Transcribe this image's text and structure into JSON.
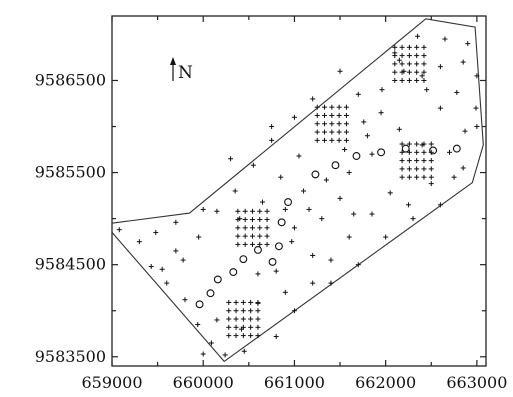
{
  "chart_data": {
    "type": "scatter",
    "title": "",
    "xlabel": "",
    "ylabel": "",
    "xlim": [
      659000,
      663100
    ],
    "ylim": [
      9583400,
      9587200
    ],
    "x_ticks": [
      659000,
      660000,
      661000,
      662000,
      663000
    ],
    "y_ticks": [
      9583500,
      9584500,
      9585500,
      9586500
    ],
    "x_tick_labels": [
      "659000",
      "660000",
      "661000",
      "662000",
      "663000"
    ],
    "y_tick_labels": [
      "9583500",
      "9584500",
      "9585500",
      "9586500"
    ],
    "north_arrow": {
      "label": "N"
    },
    "grid": false,
    "legend": "none",
    "boundary": [
      [
        659000,
        9584950
      ],
      [
        659850,
        9585060
      ],
      [
        662440,
        9587170
      ],
      [
        662980,
        9587080
      ],
      [
        663070,
        9585800
      ],
      [
        662950,
        9585390
      ],
      [
        660230,
        9583450
      ],
      [
        659000,
        9584850
      ],
      [
        659000,
        9584950
      ]
    ],
    "series": [
      {
        "marker": "plus",
        "points": [
          [
            659080,
            9584880
          ],
          [
            659300,
            9584750
          ],
          [
            659480,
            9584850
          ],
          [
            659700,
            9584960
          ],
          [
            660000,
            9585100
          ],
          [
            659430,
            9584480
          ],
          [
            659600,
            9584300
          ],
          [
            659800,
            9584120
          ],
          [
            659940,
            9583850
          ],
          [
            660090,
            9583650
          ],
          [
            660240,
            9583520
          ],
          [
            660420,
            9583800
          ],
          [
            660600,
            9584080
          ],
          [
            660800,
            9584430
          ],
          [
            660970,
            9584750
          ],
          [
            661160,
            9585100
          ],
          [
            661350,
            9585420
          ],
          [
            661550,
            9585750
          ],
          [
            661760,
            9586050
          ],
          [
            661960,
            9586400
          ],
          [
            662150,
            9586720
          ],
          [
            662350,
            9586980
          ],
          [
            662650,
            9586950
          ],
          [
            662900,
            9586900
          ],
          [
            663000,
            9586550
          ],
          [
            662780,
            9586370
          ],
          [
            662600,
            9586200
          ],
          [
            662990,
            9586200
          ],
          [
            662870,
            9585950
          ],
          [
            662700,
            9585720
          ],
          [
            662400,
            9585800
          ],
          [
            662150,
            9585970
          ],
          [
            661950,
            9586150
          ],
          [
            661700,
            9586350
          ],
          [
            661500,
            9586600
          ],
          [
            661200,
            9586300
          ],
          [
            661000,
            9586100
          ],
          [
            660750,
            9585850
          ],
          [
            660550,
            9585580
          ],
          [
            660350,
            9585300
          ],
          [
            660150,
            9585080
          ],
          [
            659950,
            9584800
          ],
          [
            659780,
            9584550
          ],
          [
            660000,
            9583530
          ],
          [
            660150,
            9583900
          ],
          [
            660800,
            9583720
          ],
          [
            661000,
            9584000
          ],
          [
            661200,
            9584300
          ],
          [
            661400,
            9584550
          ],
          [
            661600,
            9584800
          ],
          [
            661850,
            9585050
          ],
          [
            662050,
            9585280
          ],
          [
            662250,
            9585150
          ],
          [
            662500,
            9585380
          ],
          [
            662750,
            9585450
          ],
          [
            661100,
            9585300
          ],
          [
            661300,
            9585000
          ],
          [
            661500,
            9585220
          ],
          [
            661050,
            9585680
          ],
          [
            660850,
            9585450
          ],
          [
            660650,
            9585180
          ],
          [
            660300,
            9585650
          ],
          [
            660750,
            9586000
          ],
          [
            662400,
            9586550
          ],
          [
            662450,
            9586400
          ],
          [
            662200,
            9586600
          ],
          [
            661800,
            9585900
          ],
          [
            661600,
            9585500
          ],
          [
            661850,
            9585700
          ],
          [
            662100,
            9586800
          ],
          [
            662600,
            9586650
          ],
          [
            662850,
            9586700
          ],
          [
            663000,
            9586000
          ],
          [
            660600,
            9584400
          ],
          [
            660900,
            9584200
          ],
          [
            661200,
            9584600
          ],
          [
            661400,
            9584300
          ],
          [
            661700,
            9584500
          ],
          [
            662000,
            9584800
          ],
          [
            662300,
            9585000
          ],
          [
            662600,
            9585150
          ],
          [
            662850,
            9585550
          ],
          [
            660400,
            9585000
          ],
          [
            660900,
            9585100
          ],
          [
            661650,
            9585050
          ],
          [
            661000,
            9584900
          ],
          [
            660450,
            9583560
          ],
          [
            659700,
            9584650
          ],
          [
            659550,
            9584450
          ],
          [
            660280,
            9583730
          ],
          [
            660360,
            9583730
          ],
          [
            660440,
            9583730
          ],
          [
            660520,
            9583730
          ],
          [
            660600,
            9583730
          ],
          [
            660280,
            9583820
          ],
          [
            660360,
            9583820
          ],
          [
            660440,
            9583820
          ],
          [
            660520,
            9583820
          ],
          [
            660600,
            9583820
          ],
          [
            660280,
            9583910
          ],
          [
            660360,
            9583910
          ],
          [
            660440,
            9583910
          ],
          [
            660520,
            9583910
          ],
          [
            660600,
            9583910
          ],
          [
            660280,
            9584000
          ],
          [
            660360,
            9584000
          ],
          [
            660440,
            9584000
          ],
          [
            660520,
            9584000
          ],
          [
            660600,
            9584000
          ],
          [
            660280,
            9584090
          ],
          [
            660360,
            9584090
          ],
          [
            660440,
            9584090
          ],
          [
            660520,
            9584090
          ],
          [
            660600,
            9584090
          ],
          [
            660380,
            9584720
          ],
          [
            660460,
            9584720
          ],
          [
            660540,
            9584720
          ],
          [
            660620,
            9584720
          ],
          [
            660700,
            9584720
          ],
          [
            660380,
            9584810
          ],
          [
            660460,
            9584810
          ],
          [
            660540,
            9584810
          ],
          [
            660620,
            9584810
          ],
          [
            660700,
            9584810
          ],
          [
            660380,
            9584900
          ],
          [
            660460,
            9584900
          ],
          [
            660540,
            9584900
          ],
          [
            660620,
            9584900
          ],
          [
            660700,
            9584900
          ],
          [
            660380,
            9584990
          ],
          [
            660460,
            9584990
          ],
          [
            660540,
            9584990
          ],
          [
            660620,
            9584990
          ],
          [
            660700,
            9584990
          ],
          [
            660380,
            9585080
          ],
          [
            660460,
            9585080
          ],
          [
            660540,
            9585080
          ],
          [
            660620,
            9585080
          ],
          [
            660700,
            9585080
          ],
          [
            661250,
            9585850
          ],
          [
            661330,
            9585850
          ],
          [
            661410,
            9585850
          ],
          [
            661490,
            9585850
          ],
          [
            661570,
            9585850
          ],
          [
            661250,
            9585940
          ],
          [
            661330,
            9585940
          ],
          [
            661410,
            9585940
          ],
          [
            661490,
            9585940
          ],
          [
            661570,
            9585940
          ],
          [
            661250,
            9586030
          ],
          [
            661330,
            9586030
          ],
          [
            661410,
            9586030
          ],
          [
            661490,
            9586030
          ],
          [
            661570,
            9586030
          ],
          [
            661250,
            9586120
          ],
          [
            661330,
            9586120
          ],
          [
            661410,
            9586120
          ],
          [
            661490,
            9586120
          ],
          [
            661570,
            9586120
          ],
          [
            661250,
            9586210
          ],
          [
            661330,
            9586210
          ],
          [
            661410,
            9586210
          ],
          [
            661490,
            9586210
          ],
          [
            661570,
            9586210
          ],
          [
            662100,
            9586500
          ],
          [
            662180,
            9586500
          ],
          [
            662260,
            9586500
          ],
          [
            662340,
            9586500
          ],
          [
            662420,
            9586500
          ],
          [
            662100,
            9586590
          ],
          [
            662180,
            9586590
          ],
          [
            662260,
            9586590
          ],
          [
            662340,
            9586590
          ],
          [
            662420,
            9586590
          ],
          [
            662100,
            9586680
          ],
          [
            662180,
            9586680
          ],
          [
            662260,
            9586680
          ],
          [
            662340,
            9586680
          ],
          [
            662420,
            9586680
          ],
          [
            662100,
            9586770
          ],
          [
            662180,
            9586770
          ],
          [
            662260,
            9586770
          ],
          [
            662340,
            9586770
          ],
          [
            662420,
            9586770
          ],
          [
            662100,
            9586860
          ],
          [
            662180,
            9586860
          ],
          [
            662260,
            9586860
          ],
          [
            662340,
            9586860
          ],
          [
            662420,
            9586860
          ],
          [
            662180,
            9585450
          ],
          [
            662260,
            9585450
          ],
          [
            662340,
            9585450
          ],
          [
            662420,
            9585450
          ],
          [
            662500,
            9585450
          ],
          [
            662180,
            9585540
          ],
          [
            662260,
            9585540
          ],
          [
            662340,
            9585540
          ],
          [
            662420,
            9585540
          ],
          [
            662500,
            9585540
          ],
          [
            662180,
            9585630
          ],
          [
            662260,
            9585630
          ],
          [
            662340,
            9585630
          ],
          [
            662420,
            9585630
          ],
          [
            662500,
            9585630
          ],
          [
            662180,
            9585720
          ],
          [
            662260,
            9585720
          ],
          [
            662340,
            9585720
          ],
          [
            662420,
            9585720
          ],
          [
            662500,
            9585720
          ],
          [
            662180,
            9585810
          ],
          [
            662260,
            9585810
          ],
          [
            662340,
            9585810
          ],
          [
            662420,
            9585810
          ],
          [
            662500,
            9585810
          ]
        ]
      },
      {
        "marker": "circle",
        "points": [
          [
            659960,
            9584070
          ],
          [
            660080,
            9584190
          ],
          [
            660160,
            9584340
          ],
          [
            660330,
            9584420
          ],
          [
            660440,
            9584560
          ],
          [
            660600,
            9584660
          ],
          [
            660760,
            9584530
          ],
          [
            660830,
            9584700
          ],
          [
            660860,
            9584960
          ],
          [
            660930,
            9585180
          ],
          [
            661230,
            9585480
          ],
          [
            661450,
            9585580
          ],
          [
            661680,
            9585680
          ],
          [
            661950,
            9585720
          ],
          [
            662220,
            9585760
          ],
          [
            662520,
            9585740
          ],
          [
            662780,
            9585760
          ]
        ]
      }
    ]
  }
}
